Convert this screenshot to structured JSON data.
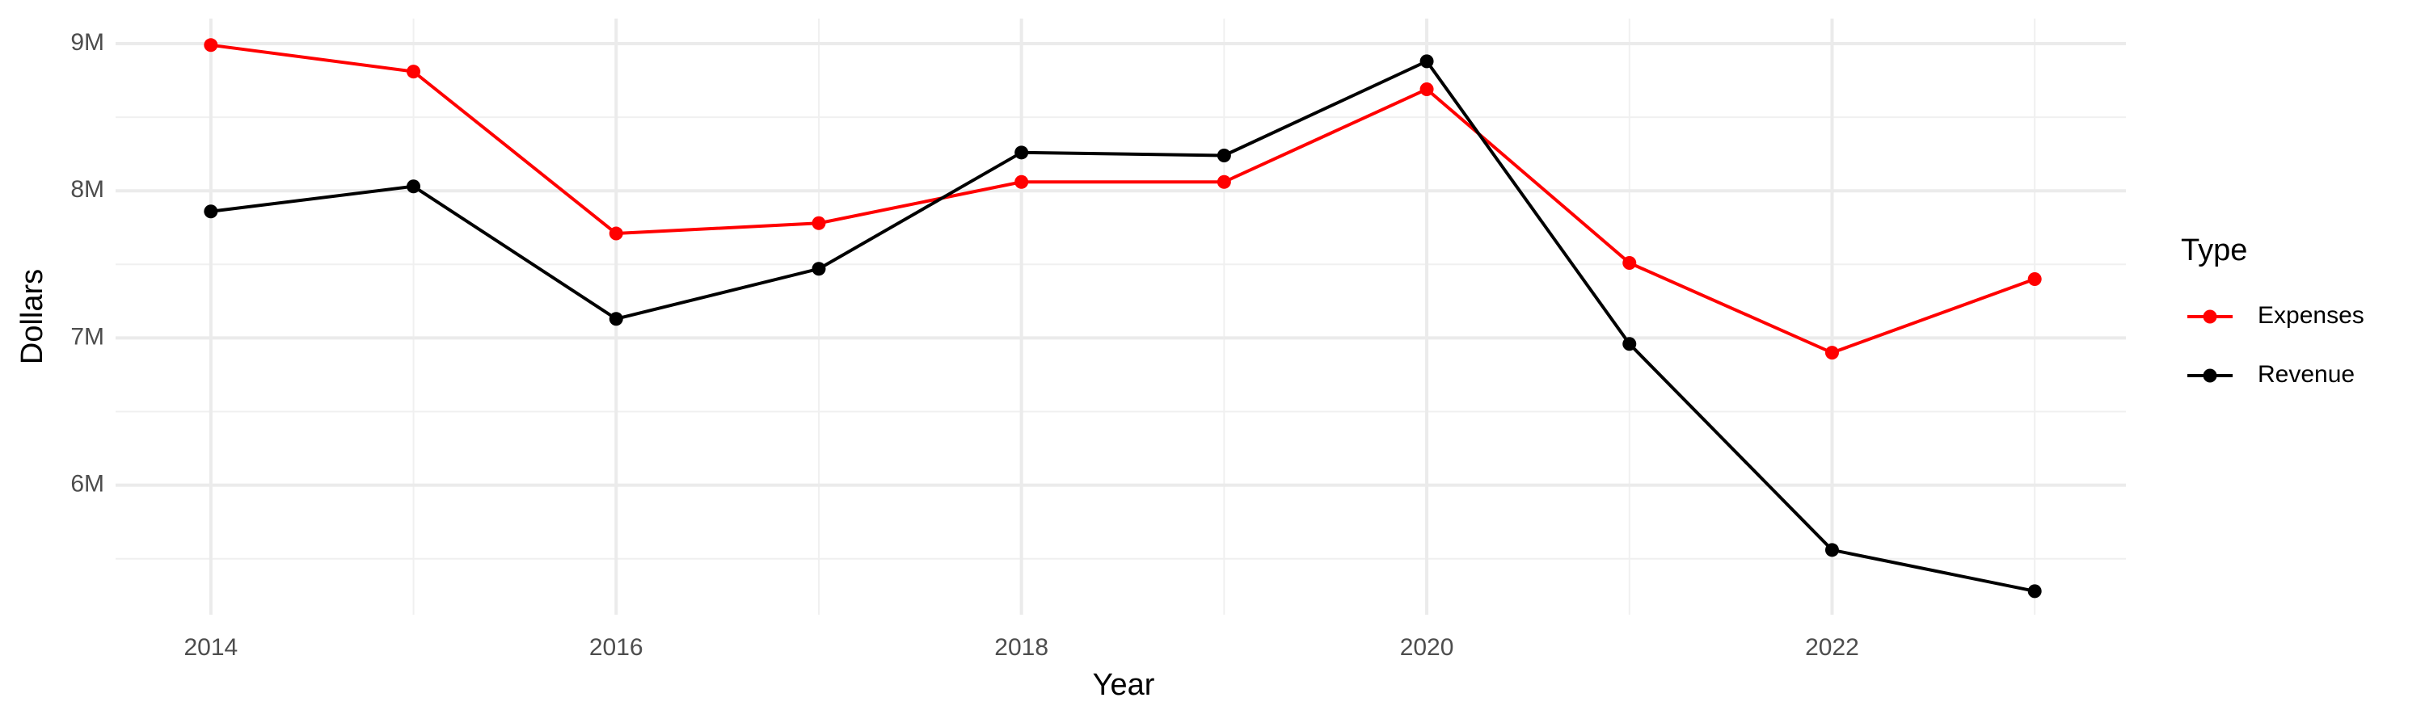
{
  "chart_data": {
    "type": "line",
    "x_label": "Year",
    "y_label": "Dollars",
    "legend_title": "Type",
    "legend_position": "right",
    "x": [
      2014,
      2015,
      2016,
      2017,
      2018,
      2019,
      2020,
      2021,
      2022,
      2023
    ],
    "series": [
      {
        "name": "Expenses",
        "color": "#ff0000",
        "values": [
          8990000,
          8810000,
          7710000,
          7780000,
          8060000,
          8060000,
          8690000,
          7510000,
          6900000,
          7400000
        ]
      },
      {
        "name": "Revenue",
        "color": "#000000",
        "values": [
          7860000,
          8030000,
          7130000,
          7470000,
          8260000,
          8240000,
          8880000,
          6960000,
          5560000,
          5280000
        ]
      }
    ],
    "xlim": [
      2013.53,
      2023.45
    ],
    "xticks": [
      2014,
      2016,
      2018,
      2020,
      2022
    ],
    "x_minor_ticks": [
      2015,
      2017,
      2019,
      2021,
      2023
    ],
    "ylim": [
      5120000,
      9170000
    ],
    "yticks": [
      {
        "value": 6000000,
        "label": "6M"
      },
      {
        "value": 7000000,
        "label": "7M"
      },
      {
        "value": 8000000,
        "label": "8M"
      },
      {
        "value": 9000000,
        "label": "9M"
      }
    ],
    "y_minor_ticks": [
      5500000,
      6500000,
      7500000,
      8500000
    ],
    "grid": true
  }
}
